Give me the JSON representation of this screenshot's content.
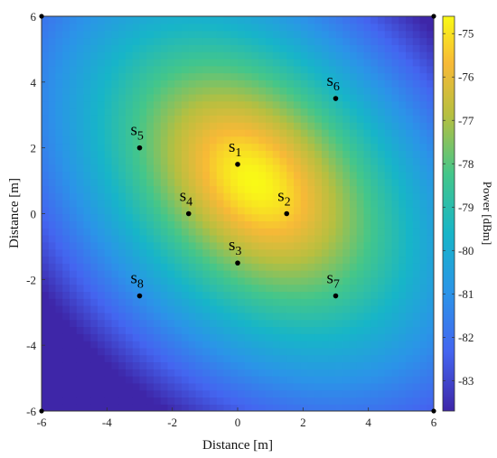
{
  "chart_data": {
    "type": "heatmap",
    "title": "",
    "xlabel": "Distance [m]",
    "ylabel": "Distance [m]",
    "xlim": [
      -6,
      6
    ],
    "ylim": [
      -6,
      6
    ],
    "xticks": [
      -6,
      -4,
      -2,
      0,
      2,
      4,
      6
    ],
    "yticks": [
      -6,
      -4,
      -2,
      0,
      2,
      4,
      6
    ],
    "colorbar": {
      "label": "Power [dBm]",
      "range": [
        -83.7,
        -74.6
      ],
      "ticks": [
        -75,
        -76,
        -77,
        -78,
        -79,
        -80,
        -81,
        -82,
        -83
      ]
    },
    "peak": {
      "x": 0.5,
      "y": 1.0,
      "value": -74.6
    },
    "sensors": [
      {
        "label": "s",
        "index": "1",
        "x": 0,
        "y": 1.5
      },
      {
        "label": "s",
        "index": "2",
        "x": 1.5,
        "y": 0
      },
      {
        "label": "s",
        "index": "3",
        "x": 0,
        "y": -1.5
      },
      {
        "label": "s",
        "index": "4",
        "x": -1.5,
        "y": 0
      },
      {
        "label": "s",
        "index": "5",
        "x": -3,
        "y": 2
      },
      {
        "label": "s",
        "index": "6",
        "x": 3,
        "y": 3.5
      },
      {
        "label": "s",
        "index": "7",
        "x": 3,
        "y": -2.5
      },
      {
        "label": "s",
        "index": "8",
        "x": -3,
        "y": -2.5
      }
    ],
    "corner_markers": [
      {
        "x": -6,
        "y": 6
      },
      {
        "x": 6,
        "y": 6
      },
      {
        "x": -6,
        "y": -6
      },
      {
        "x": 6,
        "y": -6
      }
    ]
  }
}
